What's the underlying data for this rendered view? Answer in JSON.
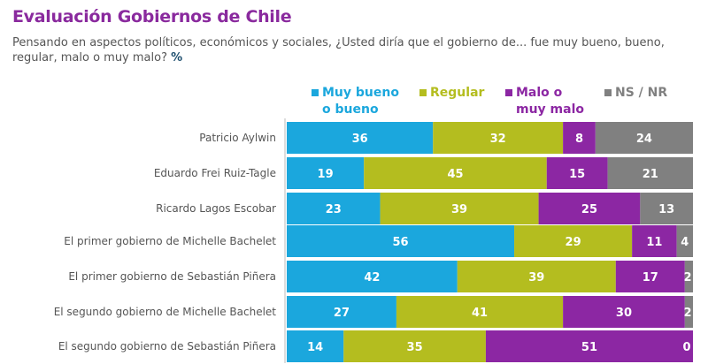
{
  "title": "Evaluación Gobiernos de Chile",
  "subtitle": "Pensando en aspectos políticos, económicos y sociales, ¿Usted diría que el gobierno de... fue muy bueno, bueno, regular, malo o muy malo?",
  "unit": "%",
  "chart_data": {
    "type": "bar",
    "orientation": "horizontal",
    "stacked": true,
    "legend": "top",
    "xlim": [
      0,
      100
    ],
    "categories": [
      "Patricio Aylwin",
      "Eduardo Frei Ruiz-Tagle",
      "Ricardo Lagos Escobar",
      "El primer gobierno de Michelle Bachelet",
      "El primer gobierno de Sebastián Piñera",
      "El segundo gobierno de Michelle Bachelet",
      "El segundo gobierno de Sebastián Piñera"
    ],
    "series": [
      {
        "name": "Muy bueno o bueno",
        "color": "#1ba7dd",
        "values": [
          36,
          19,
          23,
          56,
          42,
          27,
          14
        ]
      },
      {
        "name": "Regular",
        "color": "#b4bd1f",
        "values": [
          32,
          45,
          39,
          29,
          39,
          41,
          35
        ]
      },
      {
        "name": "Malo o muy malo",
        "color": "#8c27a3",
        "values": [
          8,
          15,
          25,
          11,
          17,
          30,
          51
        ]
      },
      {
        "name": "NS / NR",
        "color": "#808080",
        "values": [
          24,
          21,
          13,
          4,
          2,
          2,
          0
        ]
      }
    ]
  }
}
